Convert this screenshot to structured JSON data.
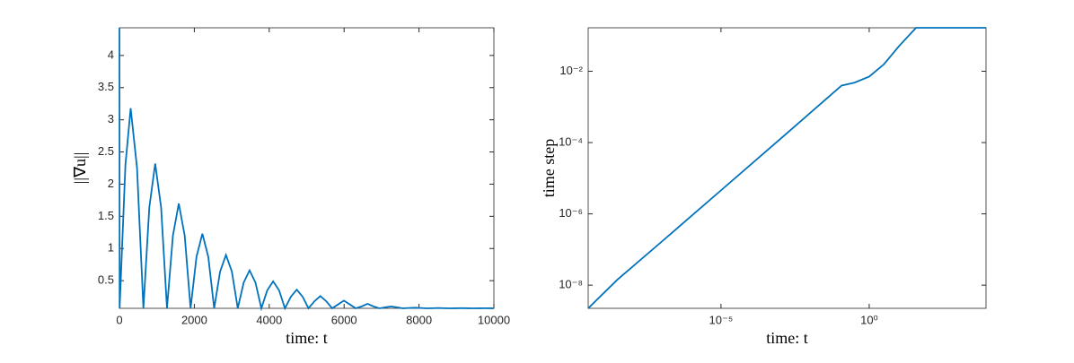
{
  "chart_data": [
    {
      "type": "line",
      "xlabel": "time: t",
      "ylabel": "||∇u||",
      "xlim": [
        0,
        10000
      ],
      "ylim": [
        0.07,
        4.43
      ],
      "xticks": [
        0,
        2000,
        4000,
        6000,
        8000,
        10000
      ],
      "yticks": [
        0.5,
        1,
        1.5,
        2,
        2.5,
        3,
        3.5,
        4
      ],
      "series": [
        {
          "color": "#0072bd",
          "x": [
            0,
            5,
            160,
            300,
            470,
            640,
            798,
            955,
            1113,
            1270,
            1428,
            1585,
            1743,
            1900,
            2058,
            2215,
            2373,
            2530,
            2688,
            2845,
            3003,
            3160,
            3318,
            3475,
            3633,
            3790,
            3948,
            4105,
            4263,
            4420,
            4578,
            4735,
            4893,
            5050,
            5208,
            5365,
            5523,
            5680,
            5838,
            5995,
            6153,
            6310,
            6468,
            6625,
            6783,
            6940,
            7098,
            7255,
            7413,
            7570,
            7728,
            7885,
            8043,
            8200,
            8358,
            8515,
            8673,
            8830,
            8988,
            9145,
            9303,
            9460,
            9618,
            9775,
            9933,
            10000
          ],
          "values": [
            4.43,
            0.07,
            2.3,
            3.18,
            2.25,
            0.07,
            1.64,
            2.32,
            1.64,
            0.07,
            1.2,
            1.7,
            1.2,
            0.07,
            0.87,
            1.23,
            0.87,
            0.07,
            0.64,
            0.9,
            0.64,
            0.07,
            0.47,
            0.66,
            0.47,
            0.07,
            0.35,
            0.49,
            0.35,
            0.07,
            0.25,
            0.36,
            0.25,
            0.07,
            0.18,
            0.26,
            0.18,
            0.07,
            0.13,
            0.19,
            0.13,
            0.07,
            0.1,
            0.14,
            0.1,
            0.07,
            0.085,
            0.1,
            0.085,
            0.07,
            0.075,
            0.08,
            0.075,
            0.07,
            0.072,
            0.075,
            0.072,
            0.07,
            0.071,
            0.073,
            0.071,
            0.07,
            0.071,
            0.072,
            0.071,
            0.07
          ]
        }
      ]
    },
    {
      "type": "line",
      "xlabel": "time: t",
      "ylabel": "time step",
      "xscale": "log",
      "yscale": "log",
      "xlim": [
        3.31e-10,
        8710
      ],
      "ylim": [
        2.24e-09,
        0.166
      ],
      "xticks": [
        {
          "value": 1e-05,
          "label": "10⁻⁵"
        },
        {
          "value": 1,
          "label": "10⁰"
        }
      ],
      "yticks": [
        {
          "value": 1e-08,
          "label": "10⁻⁸"
        },
        {
          "value": 1e-06,
          "label": "10⁻⁶"
        },
        {
          "value": 0.0001,
          "label": "10⁻⁴"
        },
        {
          "value": 0.01,
          "label": "10⁻²"
        }
      ],
      "series": [
        {
          "color": "#0072bd",
          "x": [
            3.31e-10,
            3.16e-09,
            1e-07,
            1e-05,
            0.001,
            0.117,
            0.316,
            1,
            3.16,
            10,
            38,
            8710
          ],
          "values": [
            2.24e-09,
            1.41e-08,
            1.66e-07,
            4.57e-06,
            0.000126,
            0.00398,
            0.00479,
            0.00708,
            0.0158,
            0.0501,
            0.166,
            0.166
          ]
        }
      ]
    }
  ]
}
